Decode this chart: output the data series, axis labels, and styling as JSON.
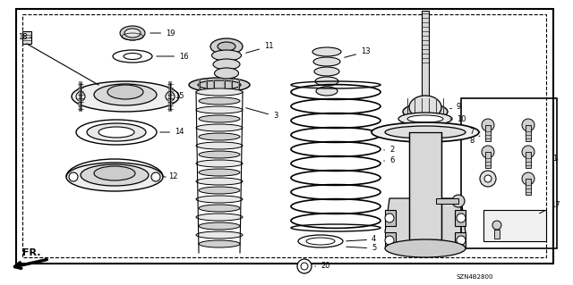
{
  "bg_color": "#ffffff",
  "line_color": "#000000",
  "gray1": "#aaaaaa",
  "gray2": "#cccccc",
  "gray3": "#e8e8e8",
  "fig_width": 6.4,
  "fig_height": 3.19,
  "dpi": 100,
  "diagram_code": "SZN4B2800",
  "fr_label": "FR."
}
